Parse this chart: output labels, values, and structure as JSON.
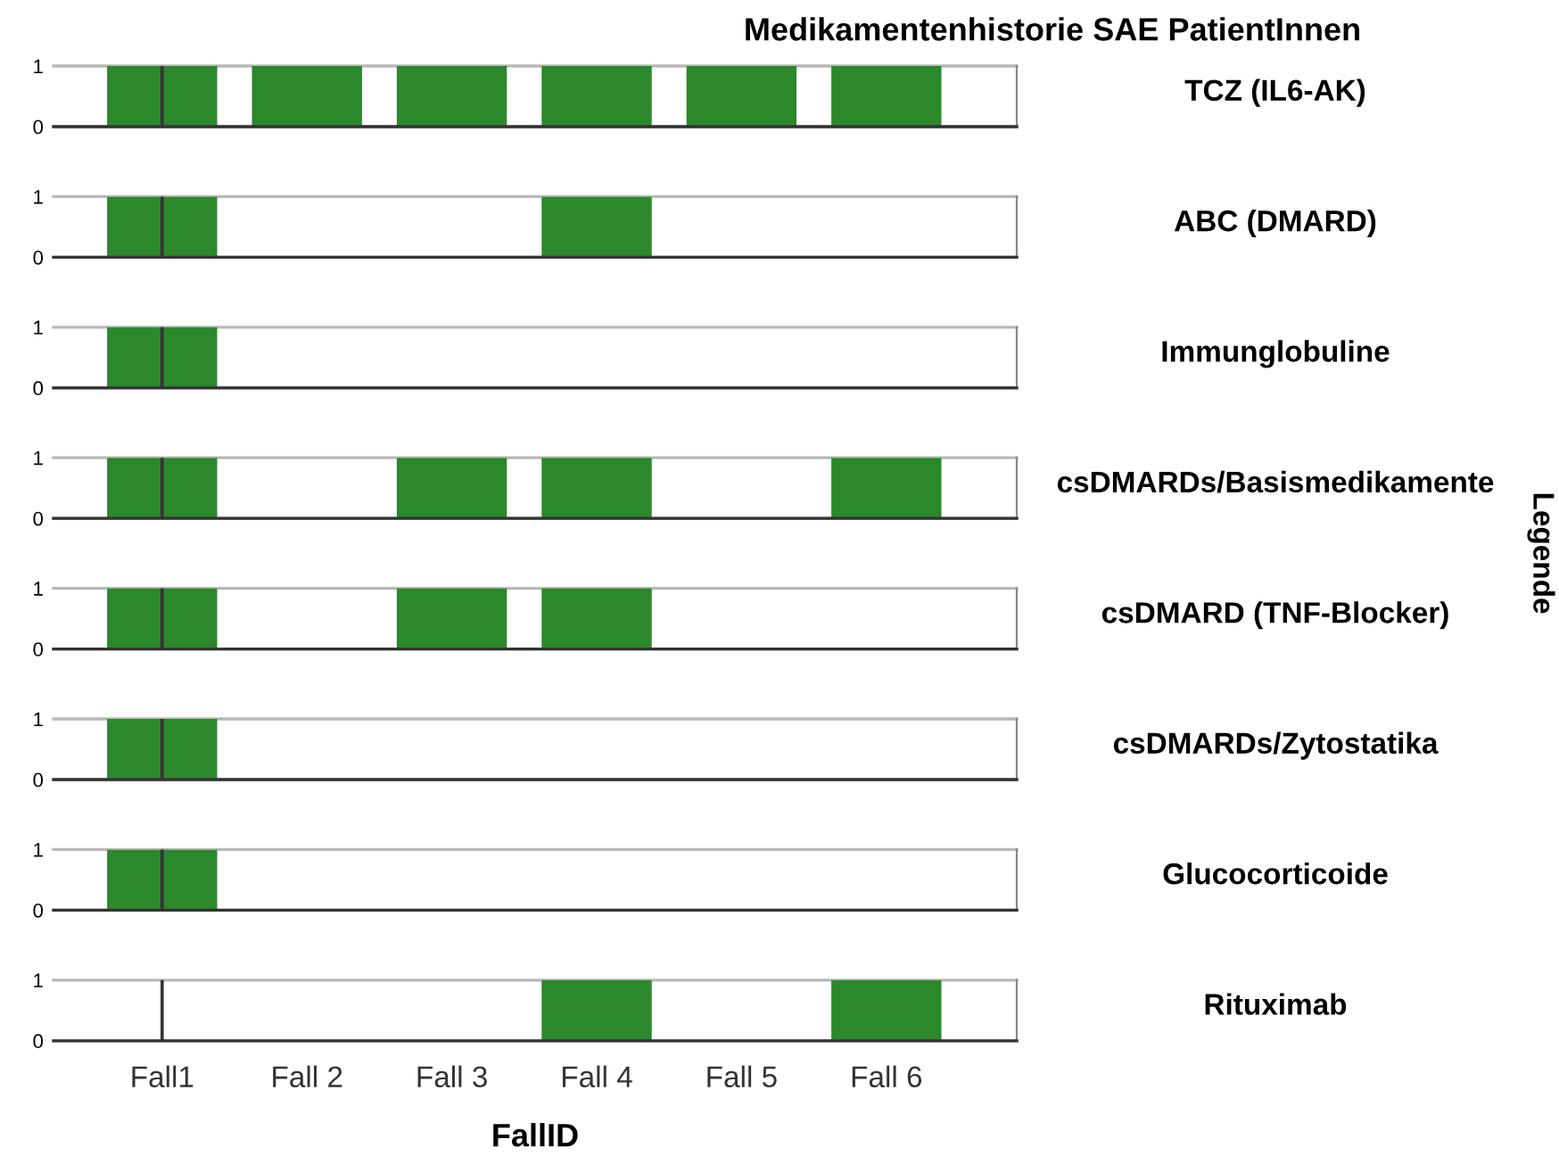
{
  "chart_data": [
    {
      "type": "bar",
      "title": "Medikamentenhistorie SAE PatientInnen",
      "annotations": [
        "TCZ (IL6-AK)",
        "Legende"
      ],
      "categories": [
        "Fall1",
        "Fall 2",
        "Fall 3",
        "Fall 4",
        "Fall 5",
        "Fall 6"
      ],
      "values": [
        1,
        1,
        1,
        1,
        1,
        1
      ],
      "color": "#2b882b",
      "ylim": [
        0,
        1
      ],
      "yticks": [
        0,
        1
      ],
      "grid": "y",
      "tick_labels": "y",
      "ref_lines": [
        {
          "axis": "x",
          "value": "Fall1",
          "color": "#333333"
        }
      ]
    },
    {
      "type": "bar",
      "annotations": [
        "ABC (DMARD)"
      ],
      "categories": [
        "Fall1",
        "Fall 2",
        "Fall 3",
        "Fall 4",
        "Fall 5",
        "Fall 6"
      ],
      "values": [
        1,
        0,
        0,
        1,
        0,
        0
      ],
      "color": "#2b882b",
      "ylim": [
        0,
        1
      ],
      "yticks": [
        0,
        1
      ],
      "grid": "y",
      "tick_labels": "y",
      "ref_lines": [
        {
          "axis": "x",
          "value": "Fall1",
          "color": "#333333"
        }
      ]
    },
    {
      "type": "bar",
      "annotations": [
        "Immunglobuline"
      ],
      "categories": [
        "Fall1",
        "Fall 2",
        "Fall 3",
        "Fall 4",
        "Fall 5",
        "Fall 6"
      ],
      "values": [
        1,
        0,
        0,
        0,
        0,
        0
      ],
      "color": "#2b882b",
      "ylim": [
        0,
        1
      ],
      "yticks": [
        0,
        1
      ],
      "grid": "y",
      "tick_labels": "y",
      "ref_lines": [
        {
          "axis": "x",
          "value": "Fall1",
          "color": "#333333"
        }
      ]
    },
    {
      "type": "bar",
      "annotations": [
        "csDMARDs/Basismedikamente"
      ],
      "categories": [
        "Fall1",
        "Fall 2",
        "Fall 3",
        "Fall 4",
        "Fall 5",
        "Fall 6"
      ],
      "values": [
        1,
        0,
        1,
        1,
        0,
        1
      ],
      "color": "#2b882b",
      "ylim": [
        0,
        1
      ],
      "yticks": [
        0,
        1
      ],
      "grid": "y",
      "tick_labels": "y",
      "ref_lines": [
        {
          "axis": "x",
          "value": "Fall1",
          "color": "#333333"
        }
      ]
    },
    {
      "type": "bar",
      "annotations": [
        "csDMARD (TNF-Blocker)"
      ],
      "categories": [
        "Fall1",
        "Fall 2",
        "Fall 3",
        "Fall 4",
        "Fall 5",
        "Fall 6"
      ],
      "values": [
        1,
        0,
        1,
        1,
        0,
        0
      ],
      "color": "#2b882b",
      "ylim": [
        0,
        1
      ],
      "yticks": [
        0,
        1
      ],
      "grid": "y",
      "tick_labels": "y",
      "ref_lines": [
        {
          "axis": "x",
          "value": "Fall1",
          "color": "#333333"
        }
      ]
    },
    {
      "type": "bar",
      "annotations": [
        "csDMARDs/Zytostatika"
      ],
      "categories": [
        "Fall1",
        "Fall 2",
        "Fall 3",
        "Fall 4",
        "Fall 5",
        "Fall 6"
      ],
      "values": [
        1,
        0,
        0,
        0,
        0,
        0
      ],
      "color": "#2b882b",
      "ylim": [
        0,
        1
      ],
      "yticks": [
        0,
        1
      ],
      "grid": "y",
      "tick_labels": "y",
      "ref_lines": [
        {
          "axis": "x",
          "value": "Fall1",
          "color": "#333333"
        }
      ]
    },
    {
      "type": "bar",
      "annotations": [
        "Glucocorticoide"
      ],
      "categories": [
        "Fall1",
        "Fall 2",
        "Fall 3",
        "Fall 4",
        "Fall 5",
        "Fall 6"
      ],
      "values": [
        1,
        0,
        0,
        0,
        0,
        0
      ],
      "color": "#2b882b",
      "ylim": [
        0,
        1
      ],
      "yticks": [
        0,
        1
      ],
      "grid": "y",
      "tick_labels": "y",
      "ref_lines": [
        {
          "axis": "x",
          "value": "Fall1",
          "color": "#333333"
        }
      ]
    },
    {
      "type": "bar",
      "xlabel": "FallID",
      "annotations": [
        "Rituximab"
      ],
      "categories": [
        "Fall1",
        "Fall 2",
        "Fall 3",
        "Fall 4",
        "Fall 5",
        "Fall 6"
      ],
      "values": [
        0,
        0,
        0,
        1,
        0,
        1
      ],
      "color": "#2b882b",
      "ylim": [
        0,
        1
      ],
      "yticks": [
        0,
        1
      ],
      "grid": "y",
      "ref_lines": [
        {
          "axis": "x",
          "value": "Fall1",
          "color": "#333333"
        }
      ]
    }
  ]
}
